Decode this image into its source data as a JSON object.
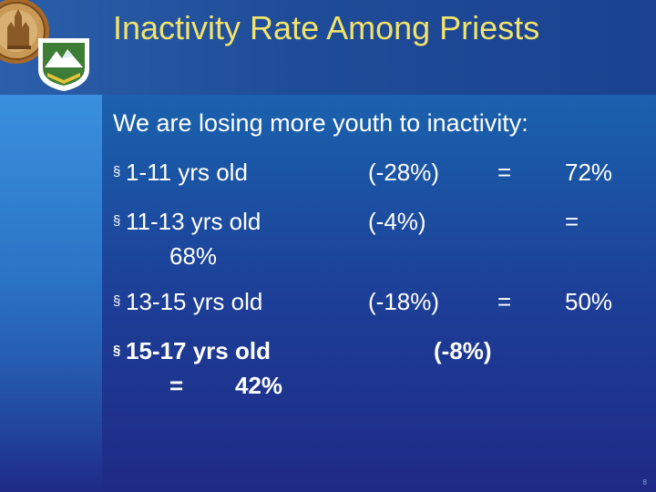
{
  "slide": {
    "title": "Inactivity Rate Among Priests",
    "subtitle": "We are losing more youth to inactivity:",
    "bullet_glyph": "§",
    "rows": [
      {
        "age": "1-11 yrs old",
        "change": "(-28%)",
        "equals": "=",
        "rate": "72%"
      },
      {
        "age": "11-13 yrs old",
        "change": "(-4%)",
        "equals": "=",
        "rate": "68%"
      },
      {
        "age": "13-15 yrs old",
        "change": "(-18%)",
        "equals": "=",
        "rate": "50%"
      },
      {
        "age": "15-17 yrs old",
        "change": "(-8%)",
        "equals": "=",
        "rate": "42%"
      }
    ],
    "page_number": "8"
  },
  "colors": {
    "title": "#f1e36c",
    "text": "#ffffff",
    "background_top": "#1d6fb8",
    "background_bottom": "#1e2a86"
  },
  "logos": [
    "council-seal",
    "venturing-emblem"
  ]
}
